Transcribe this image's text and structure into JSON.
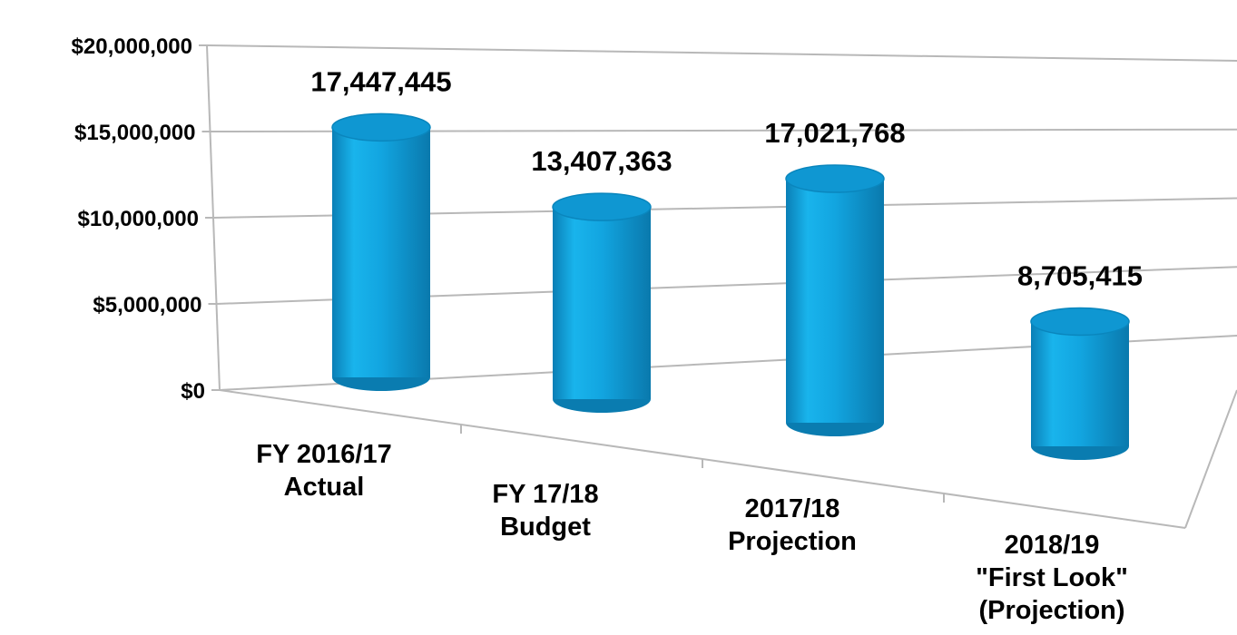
{
  "chart_data": {
    "type": "bar",
    "style": "3d-cylinder",
    "title": "",
    "xlabel": "",
    "ylabel": "",
    "ylim": [
      0,
      20000000
    ],
    "yticks": [
      {
        "value": 0,
        "label": "$0"
      },
      {
        "value": 5000000,
        "label": "$5,000,000"
      },
      {
        "value": 10000000,
        "label": "$10,000,000"
      },
      {
        "value": 15000000,
        "label": "$15,000,000"
      },
      {
        "value": 20000000,
        "label": "$20,000,000"
      }
    ],
    "categories": [
      [
        "FY 2016/17",
        "Actual"
      ],
      [
        "FY 17/18",
        "Budget"
      ],
      [
        "2017/18",
        "Projection"
      ],
      [
        "2018/19",
        "\"First Look\"",
        "(Projection)"
      ]
    ],
    "values": [
      17447445,
      13407363,
      17021768,
      8705415
    ],
    "data_labels": [
      "17,447,445",
      "13,407,363",
      "17,021,768",
      "8,705,415"
    ],
    "grid": true,
    "legend": "none",
    "colors": {
      "bar": "#12a5e0",
      "bar_dark": "#0a7cb0",
      "bar_top": "#0f97d2",
      "grid": "#b8b8b8"
    }
  }
}
